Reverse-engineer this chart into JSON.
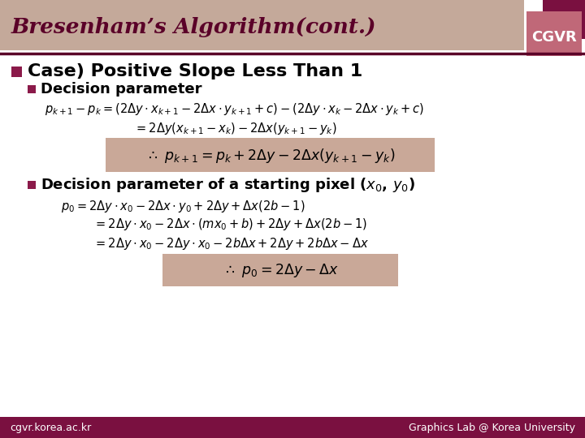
{
  "title": "Bresenham’s Algorithm(cont.)",
  "title_bg_color": "#C4A99A",
  "title_text_color": "#5A0028",
  "cgvr_back_color": "#7A1040",
  "cgvr_front_color": "#C06878",
  "cgvr_text": "CGVR",
  "footer_bg_color": "#7A1040",
  "footer_left": "cgvr.korea.ac.kr",
  "footer_right": "Graphics Lab @ Korea University",
  "bg_color": "#FFFFFF",
  "bullet_color": "#8B1A4A",
  "highlight_bg": "#C9A898",
  "line_color": "#5A0028"
}
